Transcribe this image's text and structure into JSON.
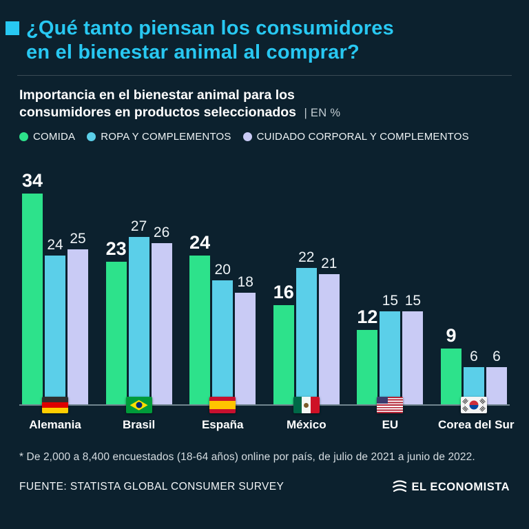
{
  "header": {
    "title_line1": "¿Qué tanto piensan los consumidores",
    "title_line2": "en el bienestar animal al comprar?",
    "accent_color": "#28c8f2"
  },
  "subtitle": {
    "line1": "Importancia en el bienestar animal para los",
    "line2": "consumidores en productos seleccionados",
    "unit": "| EN %"
  },
  "legend": [
    {
      "label": "COMIDA",
      "color": "#2de28b"
    },
    {
      "label": "ROPA Y COMPLEMENTOS",
      "color": "#5bcfe9"
    },
    {
      "label": "CUIDADO CORPORAL Y COMPLEMENTOS",
      "color": "#c9cbf5"
    }
  ],
  "chart_data": {
    "type": "bar",
    "title": "Importancia en el bienestar animal para los consumidores en productos seleccionados",
    "unit": "%",
    "categories": [
      "Alemania",
      "Brasil",
      "España",
      "México",
      "EU",
      "Corea del Sur"
    ],
    "flags": [
      "de",
      "br",
      "es",
      "mx",
      "us",
      "kr"
    ],
    "series": [
      {
        "name": "COMIDA",
        "color": "#2de28b",
        "values": [
          34,
          23,
          24,
          16,
          12,
          9
        ]
      },
      {
        "name": "ROPA Y COMPLEMENTOS",
        "color": "#5bcfe9",
        "values": [
          24,
          27,
          20,
          22,
          15,
          6
        ]
      },
      {
        "name": "CUIDADO CORPORAL Y COMPLEMENTOS",
        "color": "#c9cbf5",
        "values": [
          25,
          26,
          18,
          21,
          15,
          6
        ]
      }
    ],
    "ylim": [
      0,
      34
    ],
    "grid": false,
    "legend_position": "top"
  },
  "footnote": "* De 2,000 a 8,400 encuestados (18-64 años) online por país, de julio de 2021 a junio de 2022.",
  "footer": {
    "source": "FUENTE: STATISTA GLOBAL CONSUMER SURVEY",
    "brand": "EL ECONOMISTA"
  }
}
